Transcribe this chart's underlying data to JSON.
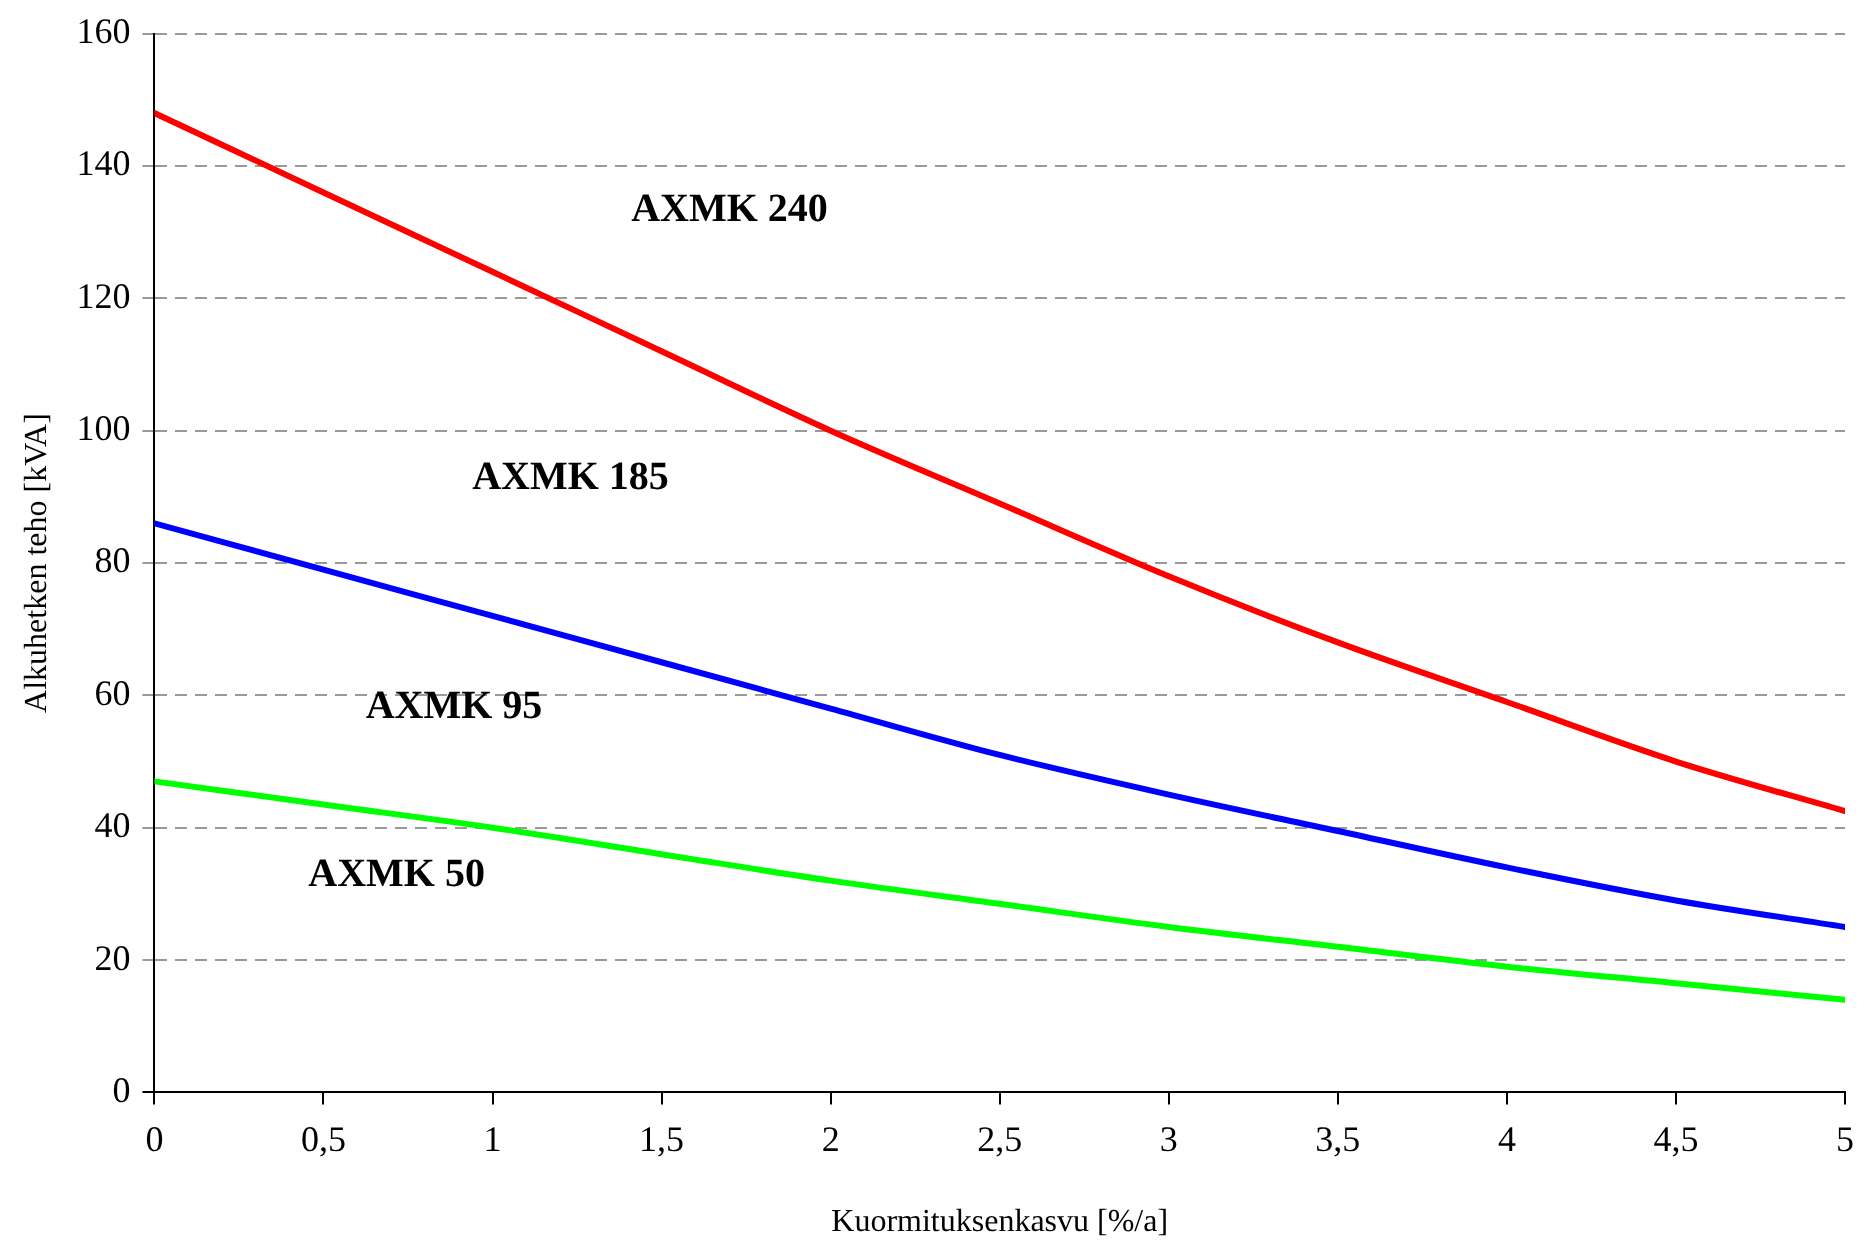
{
  "chart_data": {
    "type": "line",
    "xlabel": "Kuormituksenkasvu [%/a]",
    "ylabel": "Alkuhetken teho [kVA]",
    "x": [
      0,
      0.5,
      1,
      1.5,
      2,
      2.5,
      3,
      3.5,
      4,
      4.5,
      5
    ],
    "series": [
      {
        "color": "#ff0000",
        "values": [
          148,
          136,
          124,
          112,
          100,
          89,
          78,
          68,
          59,
          50,
          42.5
        ]
      },
      {
        "color": "#0000ff",
        "values": [
          86,
          79,
          72,
          65,
          58,
          51,
          45,
          39.5,
          34,
          29,
          25
        ]
      },
      {
        "color": "#00ff00",
        "values": [
          47,
          43.5,
          40,
          36,
          32,
          28.5,
          25,
          22,
          19,
          16.5,
          14
        ]
      }
    ],
    "xlim": [
      0,
      5
    ],
    "xticks": [
      0,
      {
        "value": 0.5,
        "label": "0,5"
      },
      1,
      {
        "value": 1.5,
        "label": "1,5"
      },
      2,
      {
        "value": 2.5,
        "label": "2,5"
      },
      3,
      {
        "value": 3.5,
        "label": "3,5"
      },
      4,
      {
        "value": 4.5,
        "label": "4,5"
      },
      5
    ],
    "ylim": [
      0,
      160
    ],
    "yticks": [
      0,
      20,
      40,
      60,
      80,
      100,
      120,
      140,
      160
    ],
    "annotations": [
      "AXMK 240",
      "AXMK 185",
      "AXMK 95",
      "AXMK 50"
    ],
    "grid": "y",
    "legend": false,
    "marker": "none",
    "line_style": "solid"
  }
}
